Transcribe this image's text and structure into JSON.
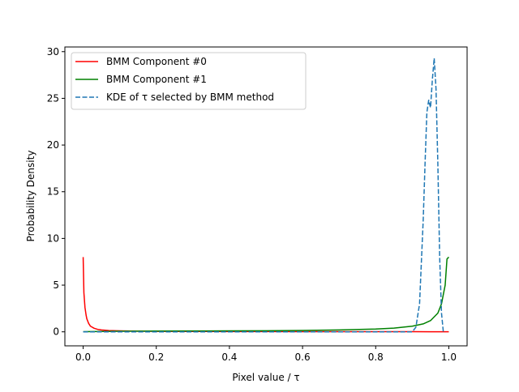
{
  "chart_data": {
    "type": "line",
    "title": "",
    "xlabel": "Pixel value / τ",
    "ylabel": "Probability Density",
    "xlim": [
      -0.05,
      1.05
    ],
    "ylim": [
      -1.5,
      30.5
    ],
    "xticks": [
      0.0,
      0.2,
      0.4,
      0.6,
      0.8,
      1.0
    ],
    "xtick_labels": [
      "0.0",
      "0.2",
      "0.4",
      "0.6",
      "0.8",
      "1.0"
    ],
    "yticks": [
      0,
      5,
      10,
      15,
      20,
      25,
      30
    ],
    "ytick_labels": [
      "0",
      "5",
      "10",
      "15",
      "20",
      "25",
      "30"
    ],
    "grid": false,
    "legend_position": "top-left",
    "series": [
      {
        "name": "BMM Component #0",
        "color": "#ff0000",
        "style": "solid",
        "x": [
          0.0,
          0.002,
          0.005,
          0.008,
          0.01,
          0.015,
          0.02,
          0.03,
          0.04,
          0.05,
          0.07,
          0.1,
          0.15,
          0.2,
          0.3,
          0.4,
          0.5,
          0.6,
          0.7,
          0.8,
          0.9,
          0.95,
          1.0
        ],
        "y": [
          8.0,
          4.2,
          2.6,
          1.8,
          1.4,
          0.9,
          0.6,
          0.38,
          0.26,
          0.2,
          0.14,
          0.1,
          0.07,
          0.05,
          0.04,
          0.03,
          0.03,
          0.02,
          0.02,
          0.02,
          0.02,
          0.01,
          0.01
        ]
      },
      {
        "name": "BMM Component #1",
        "color": "#008000",
        "style": "solid",
        "x": [
          0.0,
          0.05,
          0.1,
          0.2,
          0.3,
          0.4,
          0.5,
          0.6,
          0.7,
          0.8,
          0.85,
          0.9,
          0.93,
          0.95,
          0.97,
          0.98,
          0.99,
          0.995,
          1.0
        ],
        "y": [
          0.02,
          0.04,
          0.06,
          0.08,
          0.09,
          0.1,
          0.12,
          0.15,
          0.2,
          0.3,
          0.4,
          0.6,
          0.85,
          1.2,
          2.0,
          3.0,
          5.0,
          7.8,
          8.0
        ]
      },
      {
        "name": "KDE of τ selected by BMM method",
        "color": "#1f77b4",
        "style": "dashed",
        "x": [
          0.0,
          0.2,
          0.4,
          0.6,
          0.8,
          0.9,
          0.91,
          0.92,
          0.93,
          0.935,
          0.94,
          0.945,
          0.95,
          0.955,
          0.96,
          0.965,
          0.97,
          0.975,
          0.98,
          0.985
        ],
        "y": [
          0.0,
          0.0,
          0.0,
          0.0,
          0.0,
          0.0,
          0.5,
          3.0,
          12.0,
          18.0,
          23.5,
          24.8,
          24.0,
          27.0,
          29.3,
          26.0,
          18.0,
          8.0,
          2.0,
          0.0
        ]
      }
    ]
  }
}
